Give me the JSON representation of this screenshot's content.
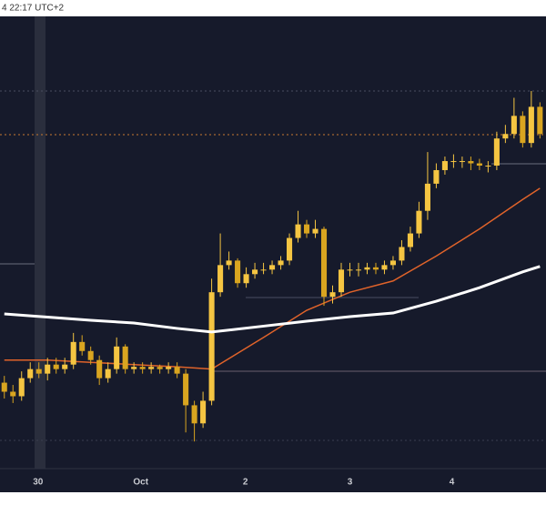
{
  "chart_data": {
    "type": "candlestick",
    "header": "4 22:17 UTC+2",
    "xlim": [
      0,
      63.2
    ],
    "ylim": [
      0,
      100
    ],
    "xticks": [
      {
        "value": 4.4,
        "label": "30"
      },
      {
        "value": 16.3,
        "label": "Oct"
      },
      {
        "value": 28.4,
        "label": "2"
      },
      {
        "value": 40.5,
        "label": "3"
      },
      {
        "value": 52.3,
        "label": "4"
      }
    ],
    "up_color": "#f5c542",
    "down_color": "#d9a520",
    "open": [
      19,
      17,
      16,
      20,
      22,
      21,
      23,
      22,
      23,
      28,
      26,
      24,
      20,
      22,
      27,
      22,
      22.5,
      22,
      22.5,
      22,
      22.5,
      21,
      14,
      10,
      15,
      39,
      45,
      46,
      41,
      43,
      44,
      44,
      45,
      46,
      51,
      54,
      52,
      53,
      38,
      39,
      44,
      44,
      44,
      44.5,
      44,
      45,
      46,
      49,
      52,
      57,
      63,
      66,
      68,
      68,
      68,
      67.5,
      67,
      67,
      73,
      74,
      78,
      72,
      80
    ],
    "high": [
      20.5,
      18.5,
      21.5,
      23.5,
      23.5,
      24.5,
      24.5,
      24.5,
      30,
      29.5,
      27,
      25,
      23.5,
      29,
      27.5,
      23.5,
      23.5,
      23.5,
      23,
      23.5,
      23.5,
      22,
      15,
      17,
      42,
      52,
      48,
      46.5,
      44.5,
      45.5,
      45.5,
      46,
      47,
      52,
      57,
      55,
      55,
      53.5,
      40.5,
      45.5,
      45.5,
      45.5,
      45.5,
      45.5,
      46,
      47,
      50.5,
      53.5,
      59,
      70,
      67.5,
      69,
      69.5,
      69,
      69,
      68.5,
      68,
      74.5,
      76,
      82,
      79,
      83.5,
      81
    ],
    "low": [
      15.5,
      14.5,
      15,
      19,
      20,
      19.5,
      21,
      21,
      22,
      25,
      23,
      18.5,
      19,
      21,
      21,
      21,
      21,
      21,
      21,
      21,
      20,
      8,
      6,
      9,
      14,
      38,
      44,
      40,
      40,
      42,
      43,
      43,
      44,
      45,
      50,
      51,
      51,
      36,
      36.5,
      38,
      42.5,
      42.5,
      43,
      43,
      43,
      44,
      45,
      48,
      51,
      55,
      62,
      65,
      66.5,
      66.5,
      66,
      66,
      65.5,
      66,
      72,
      73,
      71,
      71,
      73
    ],
    "close": [
      17,
      16,
      20,
      22,
      21,
      23,
      22,
      23,
      28,
      26,
      24,
      20,
      22,
      27,
      22,
      22.5,
      22,
      22.5,
      22,
      22.5,
      21,
      14,
      10,
      15,
      39,
      45,
      46,
      41,
      43,
      44,
      44,
      45,
      46,
      51,
      54,
      52,
      53,
      38,
      39,
      44,
      44,
      44,
      44.5,
      44,
      45,
      46,
      49,
      52,
      57,
      63,
      66,
      68,
      68,
      68,
      67.5,
      67,
      67,
      73,
      74,
      78,
      72,
      80,
      74
    ],
    "series": [
      {
        "color": "#ffffff",
        "x": [
          0,
          5,
          10,
          15,
          20,
          24,
          30,
          35,
          40,
          45,
          50,
          55,
          60,
          62
        ],
        "values": [
          34.2,
          33.5,
          32.8,
          32.2,
          31,
          30.2,
          31.5,
          32.6,
          33.6,
          34.4,
          37,
          40,
          43.5,
          44.7
        ]
      },
      {
        "color": "#e0632a",
        "x": [
          0,
          5,
          10,
          15,
          20,
          24,
          30,
          35,
          40,
          45,
          50,
          55,
          60,
          62
        ],
        "values": [
          24,
          24,
          23.5,
          23,
          22.5,
          22,
          29,
          35,
          39,
          41.5,
          47,
          53,
          59.5,
          62
        ]
      }
    ]
  }
}
